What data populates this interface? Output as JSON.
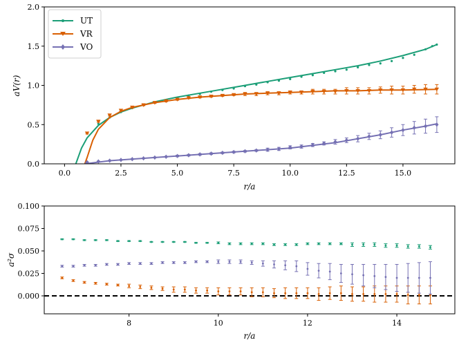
{
  "colors": {
    "UT": "#1b9e77",
    "VR": "#d95f02",
    "VO": "#7570b3",
    "zero_line": "#000000"
  },
  "chart_data": [
    {
      "type": "line",
      "title": "",
      "xlabel": "r/a",
      "ylabel": "aV(r)",
      "xlim": [
        -0.9,
        17.3
      ],
      "ylim": [
        0.0,
        2.0
      ],
      "xticks": [
        0.0,
        2.5,
        5.0,
        7.5,
        10.0,
        12.5,
        15.0
      ],
      "xtick_labels": [
        "0.0",
        "2.5",
        "5.0",
        "7.5",
        "10.0",
        "12.5",
        "15.0"
      ],
      "yticks": [
        0.0,
        0.5,
        1.0,
        1.5,
        2.0
      ],
      "ytick_labels": [
        "0.0",
        "0.5",
        "1.0",
        "1.5",
        "2.0"
      ],
      "legend": {
        "position": "top-left",
        "entries": [
          "UT",
          "VR",
          "VO"
        ]
      },
      "series": [
        {
          "name": "UT",
          "color_key": "UT",
          "marker": "dot",
          "points": [
            [
              1,
              0.39
            ],
            [
              1.5,
              0.51
            ],
            [
              2,
              0.59
            ],
            [
              2.5,
              0.66
            ],
            [
              3,
              0.71
            ],
            [
              3.5,
              0.75
            ],
            [
              4,
              0.78
            ],
            [
              4.5,
              0.81
            ],
            [
              5,
              0.84
            ],
            [
              5.5,
              0.87
            ],
            [
              6,
              0.89
            ],
            [
              6.5,
              0.92
            ],
            [
              7,
              0.94
            ],
            [
              7.5,
              0.96
            ],
            [
              8,
              0.99
            ],
            [
              8.5,
              1.01
            ],
            [
              9,
              1.04
            ],
            [
              9.5,
              1.06
            ],
            [
              10,
              1.08
            ],
            [
              10.5,
              1.11
            ],
            [
              11,
              1.13
            ],
            [
              11.5,
              1.16
            ],
            [
              12,
              1.18
            ],
            [
              12.5,
              1.2
            ],
            [
              13,
              1.23
            ],
            [
              13.5,
              1.26
            ],
            [
              14,
              1.28
            ],
            [
              14.5,
              1.31
            ],
            [
              15,
              1.35
            ],
            [
              15.5,
              1.39
            ],
            [
              16,
              1.46
            ],
            [
              16.3,
              1.5
            ],
            [
              16.5,
              1.52
            ]
          ],
          "fit_curve": [
            [
              0.5,
              0.0
            ],
            [
              0.75,
              0.2
            ],
            [
              1,
              0.33
            ],
            [
              1.5,
              0.49
            ],
            [
              2,
              0.59
            ],
            [
              2.5,
              0.66
            ],
            [
              3,
              0.71
            ],
            [
              4,
              0.79
            ],
            [
              5,
              0.85
            ],
            [
              6,
              0.9
            ],
            [
              7,
              0.95
            ],
            [
              8,
              1.0
            ],
            [
              9,
              1.05
            ],
            [
              10,
              1.1
            ],
            [
              11,
              1.15
            ],
            [
              12,
              1.2
            ],
            [
              13,
              1.25
            ],
            [
              14,
              1.31
            ],
            [
              15,
              1.38
            ],
            [
              16,
              1.46
            ],
            [
              16.5,
              1.52
            ]
          ]
        },
        {
          "name": "VR",
          "color_key": "VR",
          "marker": "triangle-down",
          "points": [
            [
              1,
              0.39
            ],
            [
              1.5,
              0.54
            ],
            [
              2,
              0.62
            ],
            [
              2.5,
              0.68
            ],
            [
              3,
              0.72
            ],
            [
              3.5,
              0.75
            ],
            [
              4,
              0.78
            ],
            [
              4.5,
              0.8
            ],
            [
              5,
              0.82
            ],
            [
              5.5,
              0.84
            ],
            [
              6,
              0.85
            ],
            [
              6.5,
              0.86
            ],
            [
              7,
              0.87
            ],
            [
              7.5,
              0.88
            ],
            [
              8,
              0.89
            ],
            [
              8.5,
              0.89
            ],
            [
              9,
              0.9
            ],
            [
              9.5,
              0.9
            ],
            [
              10,
              0.91
            ],
            [
              10.5,
              0.91
            ],
            [
              11,
              0.92
            ],
            [
              11.5,
              0.92
            ],
            [
              12,
              0.92
            ],
            [
              12.5,
              0.93
            ],
            [
              13,
              0.93
            ],
            [
              13.5,
              0.93
            ],
            [
              14,
              0.94
            ],
            [
              14.5,
              0.94
            ],
            [
              15,
              0.94
            ],
            [
              15.5,
              0.95
            ],
            [
              16,
              0.95
            ],
            [
              16.5,
              0.95
            ]
          ],
          "errors": [
            0.01,
            0.01,
            0.01,
            0.01,
            0.01,
            0.01,
            0.01,
            0.01,
            0.01,
            0.01,
            0.01,
            0.01,
            0.01,
            0.01,
            0.02,
            0.02,
            0.02,
            0.02,
            0.02,
            0.02,
            0.03,
            0.03,
            0.03,
            0.04,
            0.04,
            0.04,
            0.04,
            0.05,
            0.05,
            0.05,
            0.06,
            0.06
          ],
          "fit_curve": [
            [
              0.9,
              0.0
            ],
            [
              1,
              0.08
            ],
            [
              1.25,
              0.3
            ],
            [
              1.5,
              0.44
            ],
            [
              2,
              0.59
            ],
            [
              2.5,
              0.67
            ],
            [
              3,
              0.72
            ],
            [
              4,
              0.78
            ],
            [
              5,
              0.82
            ],
            [
              6,
              0.85
            ],
            [
              7,
              0.87
            ],
            [
              8,
              0.89
            ],
            [
              9,
              0.9
            ],
            [
              10,
              0.91
            ],
            [
              11,
              0.92
            ],
            [
              12,
              0.93
            ],
            [
              13,
              0.93
            ],
            [
              14,
              0.94
            ],
            [
              15,
              0.94
            ],
            [
              16.5,
              0.95
            ]
          ]
        },
        {
          "name": "VO",
          "color_key": "VO",
          "marker": "diamond",
          "points": [
            [
              1,
              0.02
            ],
            [
              1.5,
              0.03
            ],
            [
              2,
              0.04
            ],
            [
              2.5,
              0.05
            ],
            [
              3,
              0.06
            ],
            [
              3.5,
              0.07
            ],
            [
              4,
              0.08
            ],
            [
              4.5,
              0.09
            ],
            [
              5,
              0.1
            ],
            [
              5.5,
              0.11
            ],
            [
              6,
              0.12
            ],
            [
              6.5,
              0.13
            ],
            [
              7,
              0.14
            ],
            [
              7.5,
              0.15
            ],
            [
              8,
              0.16
            ],
            [
              8.5,
              0.17
            ],
            [
              9,
              0.18
            ],
            [
              9.5,
              0.19
            ],
            [
              10,
              0.21
            ],
            [
              10.5,
              0.22
            ],
            [
              11,
              0.24
            ],
            [
              11.5,
              0.26
            ],
            [
              12,
              0.28
            ],
            [
              12.5,
              0.3
            ],
            [
              13,
              0.32
            ],
            [
              13.5,
              0.35
            ],
            [
              14,
              0.37
            ],
            [
              14.5,
              0.4
            ],
            [
              15,
              0.43
            ],
            [
              15.5,
              0.46
            ],
            [
              16,
              0.48
            ],
            [
              16.5,
              0.5
            ]
          ],
          "errors": [
            0.005,
            0.005,
            0.005,
            0.005,
            0.005,
            0.005,
            0.005,
            0.005,
            0.01,
            0.01,
            0.01,
            0.01,
            0.01,
            0.01,
            0.01,
            0.01,
            0.02,
            0.02,
            0.02,
            0.02,
            0.02,
            0.02,
            0.03,
            0.03,
            0.04,
            0.04,
            0.05,
            0.06,
            0.07,
            0.08,
            0.09,
            0.1
          ],
          "fit_curve": [
            [
              0.9,
              0.0
            ],
            [
              2,
              0.04
            ],
            [
              4,
              0.08
            ],
            [
              6,
              0.12
            ],
            [
              8,
              0.16
            ],
            [
              10,
              0.2
            ],
            [
              12,
              0.27
            ],
            [
              14,
              0.37
            ],
            [
              15,
              0.43
            ],
            [
              16,
              0.48
            ],
            [
              16.5,
              0.51
            ]
          ]
        }
      ]
    },
    {
      "type": "scatter",
      "title": "",
      "xlabel": "r/a",
      "ylabel": "a²σ",
      "xlim": [
        6.1,
        15.3
      ],
      "ylim": [
        -0.02,
        0.1
      ],
      "xticks": [
        8,
        10,
        12,
        14
      ],
      "xtick_labels": [
        "8",
        "10",
        "12",
        "14"
      ],
      "yticks": [
        0.0,
        0.025,
        0.05,
        0.075,
        0.1
      ],
      "ytick_labels": [
        "0.000",
        "0.025",
        "0.050",
        "0.075",
        "0.100"
      ],
      "reference_line": 0.0,
      "series": [
        {
          "name": "UT",
          "color_key": "UT",
          "x": [
            6.5,
            6.75,
            7,
            7.25,
            7.5,
            7.75,
            8,
            8.25,
            8.5,
            8.75,
            9,
            9.25,
            9.5,
            9.75,
            10,
            10.25,
            10.5,
            10.75,
            11,
            11.25,
            11.5,
            11.75,
            12,
            12.25,
            12.5,
            12.75,
            13,
            13.25,
            13.5,
            13.75,
            14,
            14.25,
            14.5,
            14.75
          ],
          "values": [
            0.063,
            0.063,
            0.062,
            0.062,
            0.062,
            0.061,
            0.061,
            0.061,
            0.06,
            0.06,
            0.06,
            0.06,
            0.059,
            0.059,
            0.059,
            0.058,
            0.058,
            0.058,
            0.058,
            0.057,
            0.057,
            0.057,
            0.058,
            0.058,
            0.058,
            0.058,
            0.057,
            0.057,
            0.057,
            0.056,
            0.056,
            0.055,
            0.055,
            0.054
          ],
          "errors": [
            0.0005,
            0.0005,
            0.0005,
            0.0005,
            0.0005,
            0.0005,
            0.0005,
            0.0005,
            0.0005,
            0.0005,
            0.0005,
            0.0005,
            0.0005,
            0.0005,
            0.001,
            0.001,
            0.001,
            0.001,
            0.001,
            0.001,
            0.001,
            0.001,
            0.001,
            0.001,
            0.001,
            0.001,
            0.002,
            0.002,
            0.002,
            0.002,
            0.002,
            0.002,
            0.002,
            0.002
          ]
        },
        {
          "name": "VR",
          "color_key": "VR",
          "x": [
            6.5,
            6.75,
            7,
            7.25,
            7.5,
            7.75,
            8,
            8.25,
            8.5,
            8.75,
            9,
            9.25,
            9.5,
            9.75,
            10,
            10.25,
            10.5,
            10.75,
            11,
            11.25,
            11.5,
            11.75,
            12,
            12.25,
            12.5,
            12.75,
            13,
            13.25,
            13.5,
            13.75,
            14,
            14.25,
            14.5,
            14.75
          ],
          "values": [
            0.02,
            0.017,
            0.015,
            0.014,
            0.013,
            0.012,
            0.011,
            0.01,
            0.009,
            0.008,
            0.007,
            0.007,
            0.006,
            0.006,
            0.005,
            0.005,
            0.005,
            0.004,
            0.004,
            0.003,
            0.003,
            0.003,
            0.003,
            0.002,
            0.003,
            0.003,
            0.002,
            0.002,
            0.002,
            0.002,
            0.002,
            0.001,
            0.001,
            0.001
          ],
          "errors": [
            0.001,
            0.001,
            0.001,
            0.001,
            0.001,
            0.001,
            0.002,
            0.002,
            0.002,
            0.002,
            0.003,
            0.003,
            0.003,
            0.003,
            0.004,
            0.004,
            0.004,
            0.005,
            0.005,
            0.005,
            0.006,
            0.006,
            0.006,
            0.007,
            0.007,
            0.008,
            0.008,
            0.008,
            0.009,
            0.009,
            0.009,
            0.01,
            0.01,
            0.01
          ]
        },
        {
          "name": "VO",
          "color_key": "VO",
          "x": [
            6.5,
            6.75,
            7,
            7.25,
            7.5,
            7.75,
            8,
            8.25,
            8.5,
            8.75,
            9,
            9.25,
            9.5,
            9.75,
            10,
            10.25,
            10.5,
            10.75,
            11,
            11.25,
            11.5,
            11.75,
            12,
            12.25,
            12.5,
            12.75,
            13,
            13.25,
            13.5,
            13.75,
            14,
            14.25,
            14.5,
            14.75
          ],
          "values": [
            0.033,
            0.033,
            0.034,
            0.034,
            0.035,
            0.035,
            0.036,
            0.036,
            0.036,
            0.037,
            0.037,
            0.037,
            0.038,
            0.038,
            0.038,
            0.038,
            0.038,
            0.037,
            0.036,
            0.035,
            0.034,
            0.033,
            0.03,
            0.028,
            0.027,
            0.025,
            0.024,
            0.023,
            0.022,
            0.021,
            0.02,
            0.02,
            0.02,
            0.02
          ],
          "errors": [
            0.001,
            0.001,
            0.001,
            0.001,
            0.001,
            0.001,
            0.001,
            0.001,
            0.001,
            0.001,
            0.001,
            0.001,
            0.001,
            0.001,
            0.002,
            0.002,
            0.002,
            0.002,
            0.003,
            0.004,
            0.005,
            0.006,
            0.007,
            0.008,
            0.009,
            0.01,
            0.011,
            0.012,
            0.013,
            0.014,
            0.015,
            0.016,
            0.017,
            0.018
          ]
        }
      ]
    }
  ]
}
